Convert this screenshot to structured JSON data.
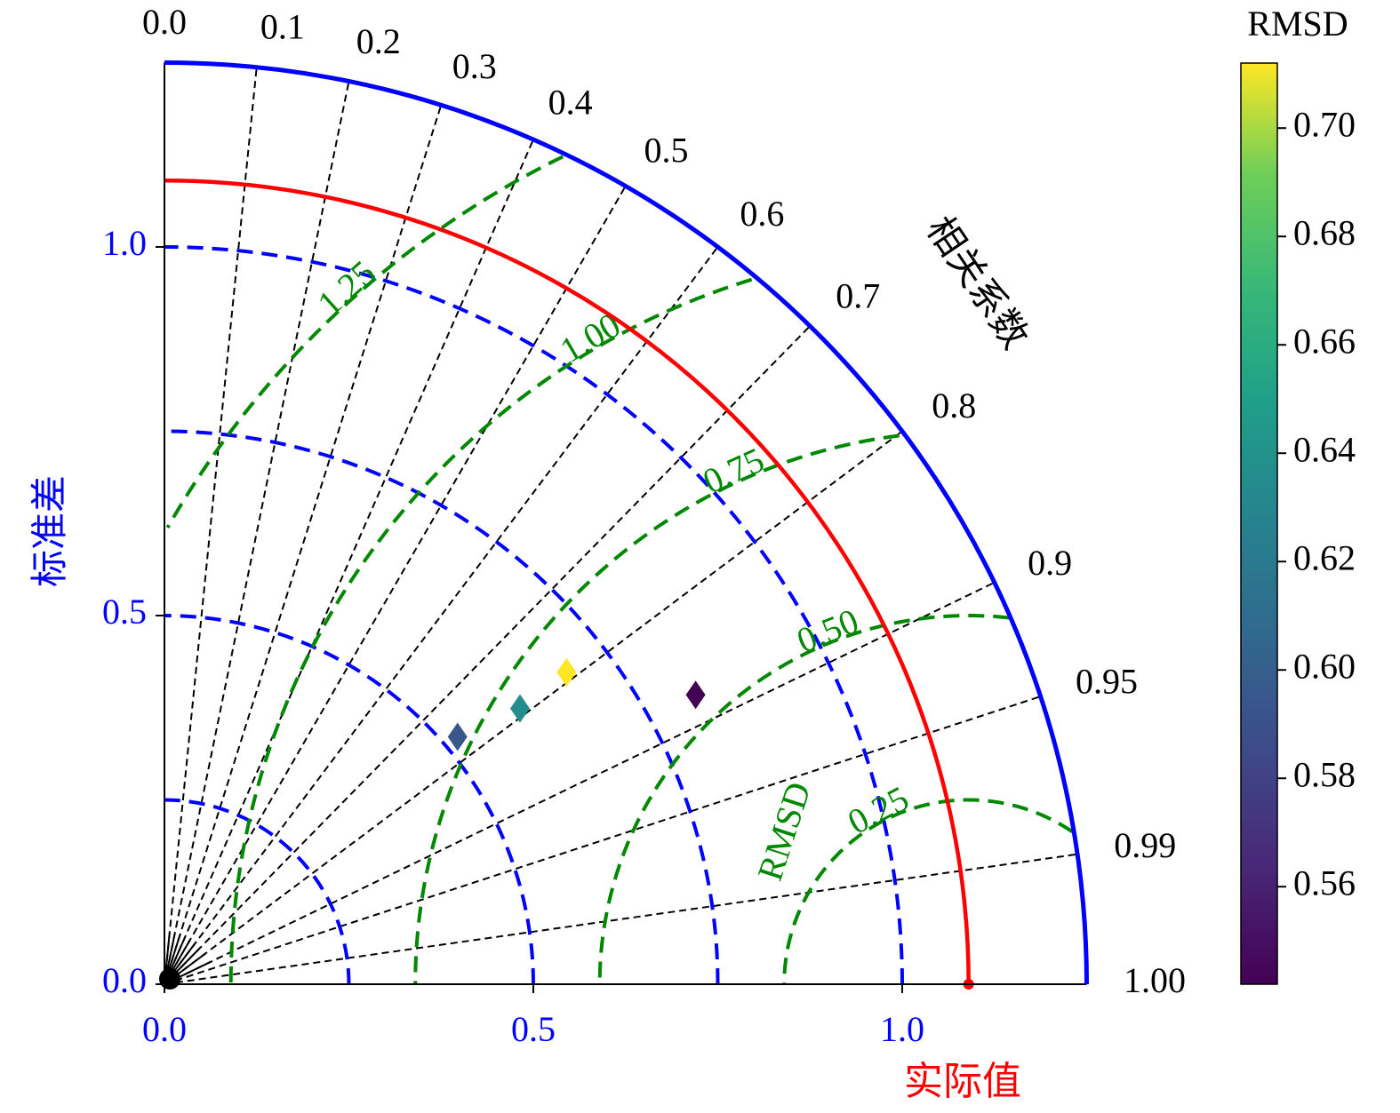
{
  "chart_data": {
    "type": "scatter",
    "subtype": "taylor-diagram",
    "title": "",
    "xlabel": "实际值",
    "ylabel": "标准差",
    "angular_label": "相关系数",
    "max_std": 1.25,
    "reference_std": 1.09,
    "x_ticks": [
      "0.0",
      "0.5",
      "1.0"
    ],
    "y_ticks": [
      "0.0",
      "0.5",
      "1.0"
    ],
    "std_contours": [
      0.25,
      0.5,
      0.75,
      1.0
    ],
    "correlation_ticks": [
      "0.0",
      "0.1",
      "0.2",
      "0.3",
      "0.4",
      "0.5",
      "0.6",
      "0.7",
      "0.8",
      "0.9",
      "0.95",
      "0.99",
      "1.00"
    ],
    "rmsd_contours": [
      {
        "value": 0.25,
        "label": "0.25"
      },
      {
        "value": 0.5,
        "label": "0.50"
      },
      {
        "value": 0.75,
        "label": "0.75"
      },
      {
        "value": 1.0,
        "label": "1.00"
      },
      {
        "value": 1.25,
        "label": "1.25"
      }
    ],
    "rmsd_axis_label": "RMSD",
    "points": [
      {
        "std": 0.52,
        "correlation": 0.764,
        "rmsd": 0.595
      },
      {
        "std": 0.61,
        "correlation": 0.79,
        "rmsd": 0.635
      },
      {
        "std": 0.69,
        "correlation": 0.79,
        "rmsd": 0.712
      },
      {
        "std": 0.82,
        "correlation": 0.878,
        "rmsd": 0.542
      }
    ],
    "colorbar": {
      "label": "RMSD",
      "range": [
        0.542,
        0.712
      ],
      "ticks": [
        "0.56",
        "0.58",
        "0.60",
        "0.62",
        "0.64",
        "0.66",
        "0.68",
        "0.70"
      ],
      "colormap": "viridis"
    },
    "colors": {
      "outer_arc": "#0000ff",
      "reference_arc": "#ff0000",
      "std_contours": "#0000ff",
      "rmsd_contours": "#008800",
      "correlation_lines": "#000000",
      "ylabel": "#0000ff",
      "xlabel": "#ff0000",
      "tick_labels": "#0000ff"
    }
  }
}
